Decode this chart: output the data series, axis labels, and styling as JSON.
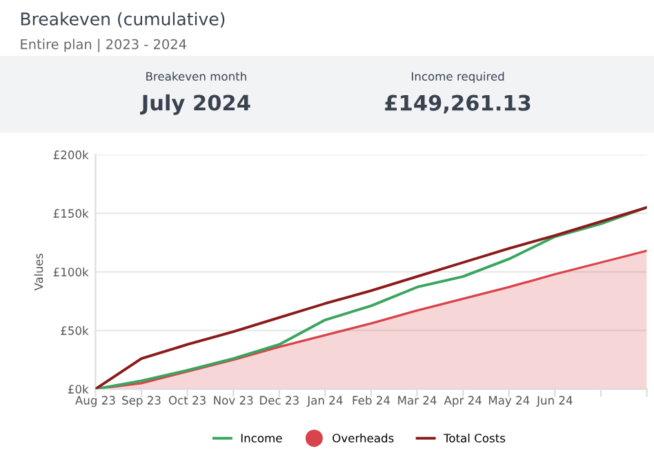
{
  "chart_data": {
    "type": "line",
    "title": "Breakeven (cumulative)",
    "subtitle": "Entire plan | 2023 - 2024",
    "annotations": [
      "Breakeven month",
      "July 2024",
      "Income required",
      "£149,261.13"
    ],
    "ylabel": "Values",
    "categories": [
      "Aug 23",
      "Sep 23",
      "Oct 23",
      "Nov 23",
      "Dec 23",
      "Jan 24",
      "Feb 24",
      "Mar 24",
      "Apr 24",
      "May 24",
      "Jun 24",
      null,
      null
    ],
    "ylim": [
      0,
      200
    ],
    "yticks": [
      {
        "value": 0,
        "label": "£0k"
      },
      {
        "value": 50,
        "label": "£50k"
      },
      {
        "value": 100,
        "label": "£100k"
      },
      {
        "value": 150,
        "label": "£150k"
      },
      {
        "value": 200,
        "label": "£200k"
      }
    ],
    "grid": "y",
    "legend": "bottom",
    "series": [
      {
        "name": "Income",
        "color": "#3aa560",
        "values": [
          0,
          7,
          16,
          26,
          38,
          59,
          71,
          87,
          96,
          111,
          130,
          141,
          155
        ]
      },
      {
        "name": "Overheads",
        "type": "area",
        "color": "#d9434b",
        "values": [
          0,
          5,
          15,
          25,
          36,
          46,
          56,
          67,
          77,
          87,
          98,
          108,
          118
        ]
      },
      {
        "name": "Total Costs",
        "color": "#8b1a1a",
        "values": [
          0,
          26,
          38,
          49,
          61,
          73,
          84,
          96,
          108,
          120,
          131,
          143,
          155
        ]
      }
    ]
  }
}
